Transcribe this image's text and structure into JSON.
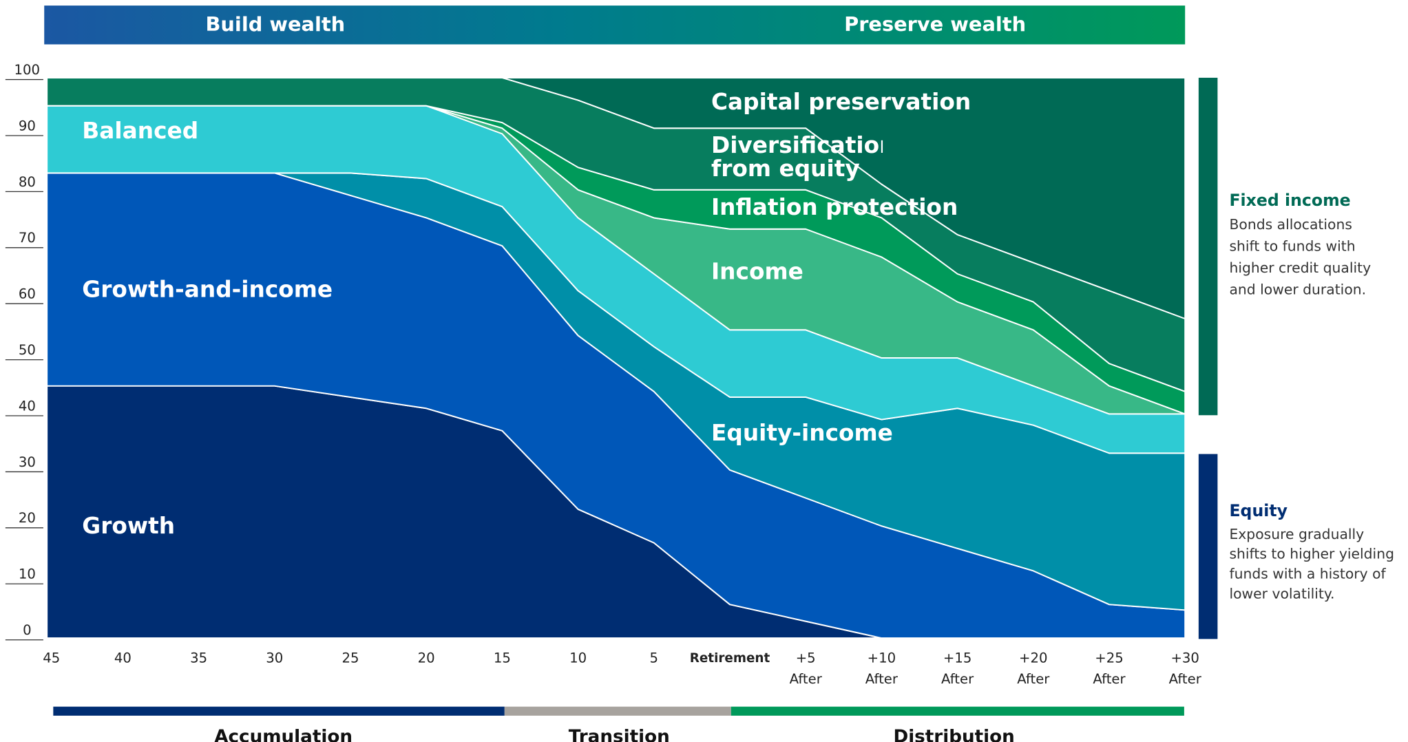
{
  "chart_data": {
    "type": "stacked_area",
    "banner": [
      "Build wealth",
      "Preserve wealth"
    ],
    "phases": [
      "Accumulation",
      "Transition",
      "Distribution"
    ],
    "categories": [
      [
        "45"
      ],
      [
        "40"
      ],
      [
        "35"
      ],
      [
        "30"
      ],
      [
        "25"
      ],
      [
        "20"
      ],
      [
        "15"
      ],
      [
        "10"
      ],
      [
        "5"
      ],
      [
        "Retirement"
      ],
      [
        "+5",
        "After"
      ],
      [
        "+10",
        "After"
      ],
      [
        "+15",
        "After"
      ],
      [
        "+20",
        "After"
      ],
      [
        "+25",
        "After"
      ],
      [
        "+30",
        "After"
      ]
    ],
    "series": [
      {
        "name": "Growth",
        "color": "#002d72",
        "values": [
          45,
          45,
          45,
          45,
          43,
          41,
          37,
          23,
          17,
          6,
          3,
          0,
          0,
          0,
          0,
          0
        ]
      },
      {
        "name": "Growth-and-income",
        "color": "#0057b8",
        "values": [
          38,
          38,
          38,
          38,
          36,
          34,
          33,
          31,
          27,
          24,
          22,
          20,
          16,
          12,
          6,
          5
        ]
      },
      {
        "name": "Equity-income",
        "color": "#008fa8",
        "values": [
          0,
          0,
          0,
          0,
          4,
          7,
          7,
          8,
          8,
          13,
          18,
          19,
          25,
          26,
          27,
          28
        ]
      },
      {
        "name": "Balanced",
        "color": "#2ecbd3",
        "values": [
          12,
          12,
          12,
          12,
          12,
          13,
          13,
          13,
          13,
          12,
          12,
          11,
          9,
          7,
          7,
          7
        ]
      },
      {
        "name": "Income",
        "color": "#38b887",
        "values": [
          0,
          0,
          0,
          0,
          0,
          0,
          1,
          5,
          10,
          18,
          18,
          18,
          10,
          10,
          5,
          0
        ]
      },
      {
        "name": "Inflation protection",
        "color": "#009a5a",
        "values": [
          0,
          0,
          0,
          0,
          0,
          0,
          1,
          4,
          5,
          7,
          7,
          7,
          5,
          5,
          4,
          4
        ]
      },
      {
        "name": "Diversification from equity",
        "color": "#077d5e",
        "values": [
          5,
          5,
          5,
          5,
          5,
          5,
          8,
          12,
          11,
          11,
          11,
          6,
          7,
          7,
          13,
          13
        ]
      },
      {
        "name": "Capital preservation",
        "color": "#006a55",
        "values": [
          0,
          0,
          0,
          0,
          0,
          0,
          0,
          4,
          9,
          9,
          9,
          19,
          28,
          33,
          38,
          43
        ]
      }
    ],
    "ylim": [
      0,
      100
    ],
    "yticks": [
      0,
      10,
      20,
      30,
      40,
      50,
      60,
      70,
      80,
      90,
      100
    ],
    "side_notes": [
      {
        "title": "Fixed income",
        "text": "Bonds allocations shift to funds with higher credit quality and lower duration.",
        "color": "#006a55"
      },
      {
        "title": "Equity",
        "text": "Exposure gradually shifts to higher yielding funds with a history of lower volatility.",
        "color": "#002d72"
      }
    ]
  }
}
